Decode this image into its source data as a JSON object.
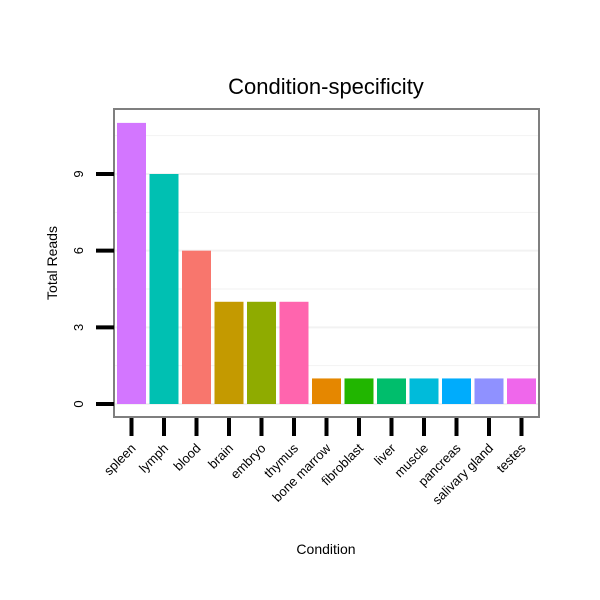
{
  "chart_data": {
    "type": "bar",
    "title": "Condition-specificity",
    "xlabel": "Condition",
    "ylabel": "Total Reads",
    "categories": [
      "spleen",
      "lymph",
      "blood",
      "brain",
      "embryo",
      "thymus",
      "bone marrow",
      "fibroblast",
      "liver",
      "muscle",
      "pancreas",
      "salivary gland",
      "testes"
    ],
    "values": [
      11,
      9,
      6,
      4,
      4,
      4,
      1,
      1,
      1,
      1,
      1,
      1,
      1
    ],
    "colors": [
      "#d376ff",
      "#00c0b2",
      "#f8766d",
      "#c49a00",
      "#8fab00",
      "#ff65ae",
      "#e58700",
      "#21b600",
      "#00be6c",
      "#00bbda",
      "#00acfc",
      "#8f91ff",
      "#ef67eb"
    ],
    "yticks": [
      0,
      3,
      6,
      9
    ],
    "ylim": [
      -0.5,
      11.5
    ],
    "grid": true,
    "legend": "none"
  }
}
